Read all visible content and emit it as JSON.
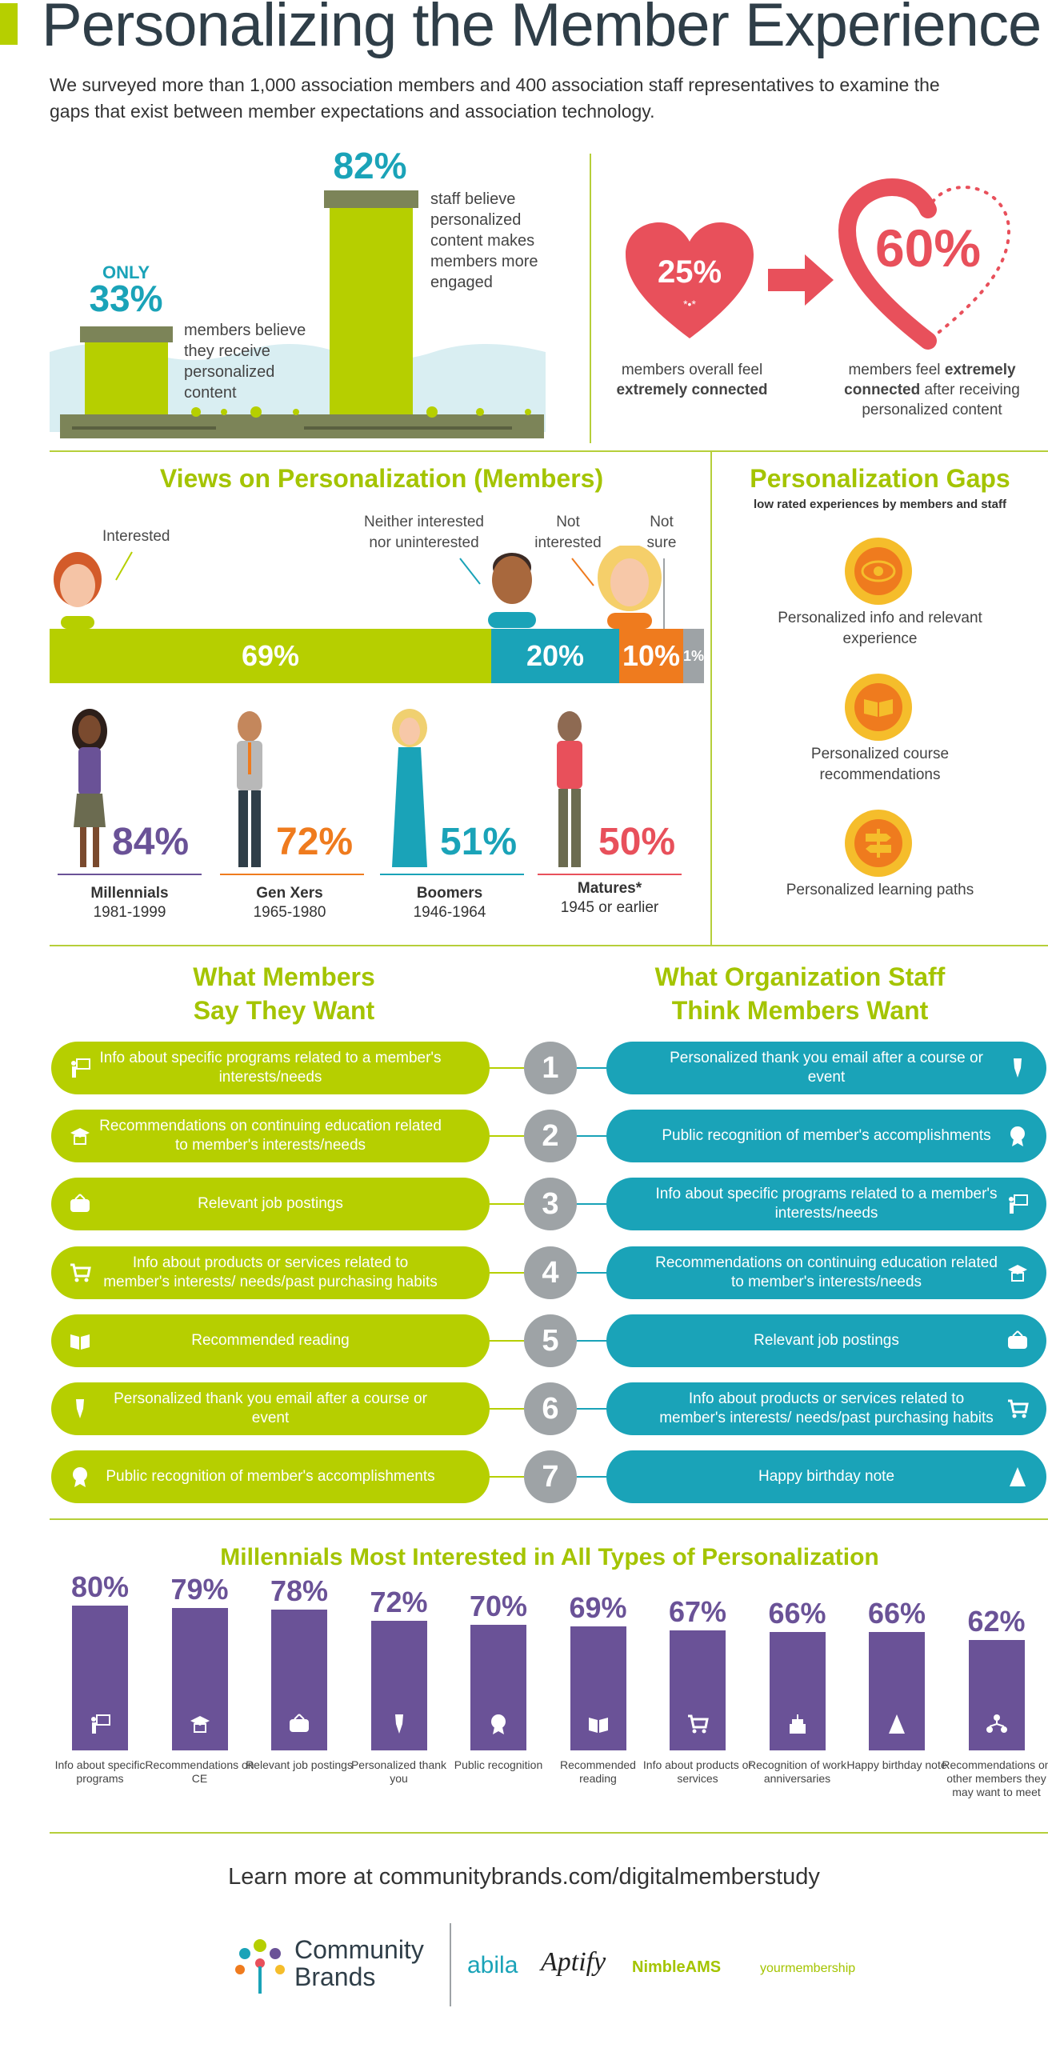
{
  "header": {
    "title": "Personalizing the Member Experience",
    "intro": "We surveyed more than 1,000 association members and 400 association staff representatives to examine the gaps that exist between member expectations and association technology."
  },
  "stats": {
    "only": "ONLY",
    "members_pct": "33%",
    "members_text": "members believe they receive personalized content",
    "staff_pct": "82%",
    "staff_text": "staff believe personalized content makes members more engaged",
    "connected_pct": "25%",
    "connected_text_a": "members overall feel",
    "connected_text_b": "extremely connected",
    "after_pct": "60%",
    "after_text_a": "members feel",
    "after_text_b": "extremely connected",
    "after_text_c": "after receiving personalized content"
  },
  "views": {
    "title": "Views on Personalization (Members)",
    "segments": [
      {
        "label": "Interested",
        "value": "69%",
        "pct": 69,
        "color": "#b6cf00"
      },
      {
        "label": "Neither interested nor uninterested",
        "value": "20%",
        "pct": 20,
        "color": "#1aa3b8"
      },
      {
        "label": "Not interested",
        "value": "10%",
        "pct": 10,
        "color": "#ef7b1e"
      },
      {
        "label": "Not sure",
        "value": "1%",
        "pct": 1,
        "color": "#9ea3a6"
      }
    ],
    "generations": [
      {
        "name": "Millennials",
        "years": "1981-1999",
        "value": "84%",
        "color": "#6a5297"
      },
      {
        "name": "Gen Xers",
        "years": "1965-1980",
        "value": "72%",
        "color": "#ef7b1e"
      },
      {
        "name": "Boomers",
        "years": "1946-1964",
        "value": "51%",
        "color": "#1aa3b8"
      },
      {
        "name": "Matures*",
        "years": "1945 or earlier",
        "value": "50%",
        "color": "#e8505b"
      }
    ]
  },
  "gaps": {
    "title": "Personalization Gaps",
    "subtitle": "low rated experiences by members and staff",
    "items": [
      {
        "label": "Personalized info and relevant experience",
        "icon": "eye-icon"
      },
      {
        "label": "Personalized course recommendations",
        "icon": "book-icon"
      },
      {
        "label": "Personalized learning paths",
        "icon": "signpost-icon"
      }
    ]
  },
  "wants": {
    "members_title_1": "What Members",
    "members_title_2": "Say They Want",
    "staff_title_1": "What Organization Staff",
    "staff_title_2": "Think Members Want",
    "rows": [
      {
        "num": "1",
        "member": "Info about specific programs related to a member's interests/needs",
        "member_icon": "presenter-icon",
        "staff": "Personalized thank you email after a course or event",
        "staff_icon": "pen-nib-icon"
      },
      {
        "num": "2",
        "member": "Recommendations on continuing education related to member's interests/needs",
        "member_icon": "graduation-cap-icon",
        "staff": "Public recognition of member's accomplishments",
        "staff_icon": "award-icon"
      },
      {
        "num": "3",
        "member": "Relevant job postings",
        "member_icon": "job-sign-icon",
        "staff": "Info about specific programs related to a member's interests/needs",
        "staff_icon": "presenter-icon"
      },
      {
        "num": "4",
        "member": "Info about products or services related to member's interests/ needs/past purchasing habits",
        "member_icon": "cart-icon",
        "staff": "Recommendations on continuing education related to member's interests/needs",
        "staff_icon": "graduation-cap-icon"
      },
      {
        "num": "5",
        "member": "Recommended reading",
        "member_icon": "book-icon",
        "staff": "Relevant job postings",
        "staff_icon": "job-sign-icon"
      },
      {
        "num": "6",
        "member": "Personalized thank you email after a course or event",
        "member_icon": "pen-nib-icon",
        "staff": "Info about products or services related to member's interests/ needs/past purchasing habits",
        "staff_icon": "cart-icon"
      },
      {
        "num": "7",
        "member": "Public recognition of member's accomplishments",
        "member_icon": "award-icon",
        "staff": "Happy birthday note",
        "staff_icon": "party-hat-icon"
      }
    ]
  },
  "millennials": {
    "title": "Millennials Most Interested in All Types of Personalization",
    "items": [
      {
        "value": "80%",
        "pct": 80,
        "label": "Info about specific programs"
      },
      {
        "value": "79%",
        "pct": 79,
        "label": "Recommendations on CE"
      },
      {
        "value": "78%",
        "pct": 78,
        "label": "Relevant job postings"
      },
      {
        "value": "72%",
        "pct": 72,
        "label": "Personalized thank you"
      },
      {
        "value": "70%",
        "pct": 70,
        "label": "Public recognition"
      },
      {
        "value": "69%",
        "pct": 69,
        "label": "Recommended reading"
      },
      {
        "value": "67%",
        "pct": 67,
        "label": "Info about products or services"
      },
      {
        "value": "66%",
        "pct": 66,
        "label": "Recognition of work anniversaries"
      },
      {
        "value": "66%",
        "pct": 66,
        "label": "Happy birthday note"
      },
      {
        "value": "62%",
        "pct": 62,
        "label": "Recommendations on other members they may want to meet"
      }
    ]
  },
  "footer": {
    "learn_more": "Learn more at communitybrands.com/digitalmemberstudy",
    "brand_1": "Community",
    "brand_2": "Brands",
    "logos": [
      "abila",
      "Aptify",
      "NimbleAMS",
      "yourmembership"
    ]
  },
  "colors": {
    "green": "#b6cf00",
    "teal": "#1aa3b8",
    "orange": "#ef7b1e",
    "purple": "#6a5297",
    "red": "#e8505b",
    "gray": "#9ea3a6"
  }
}
